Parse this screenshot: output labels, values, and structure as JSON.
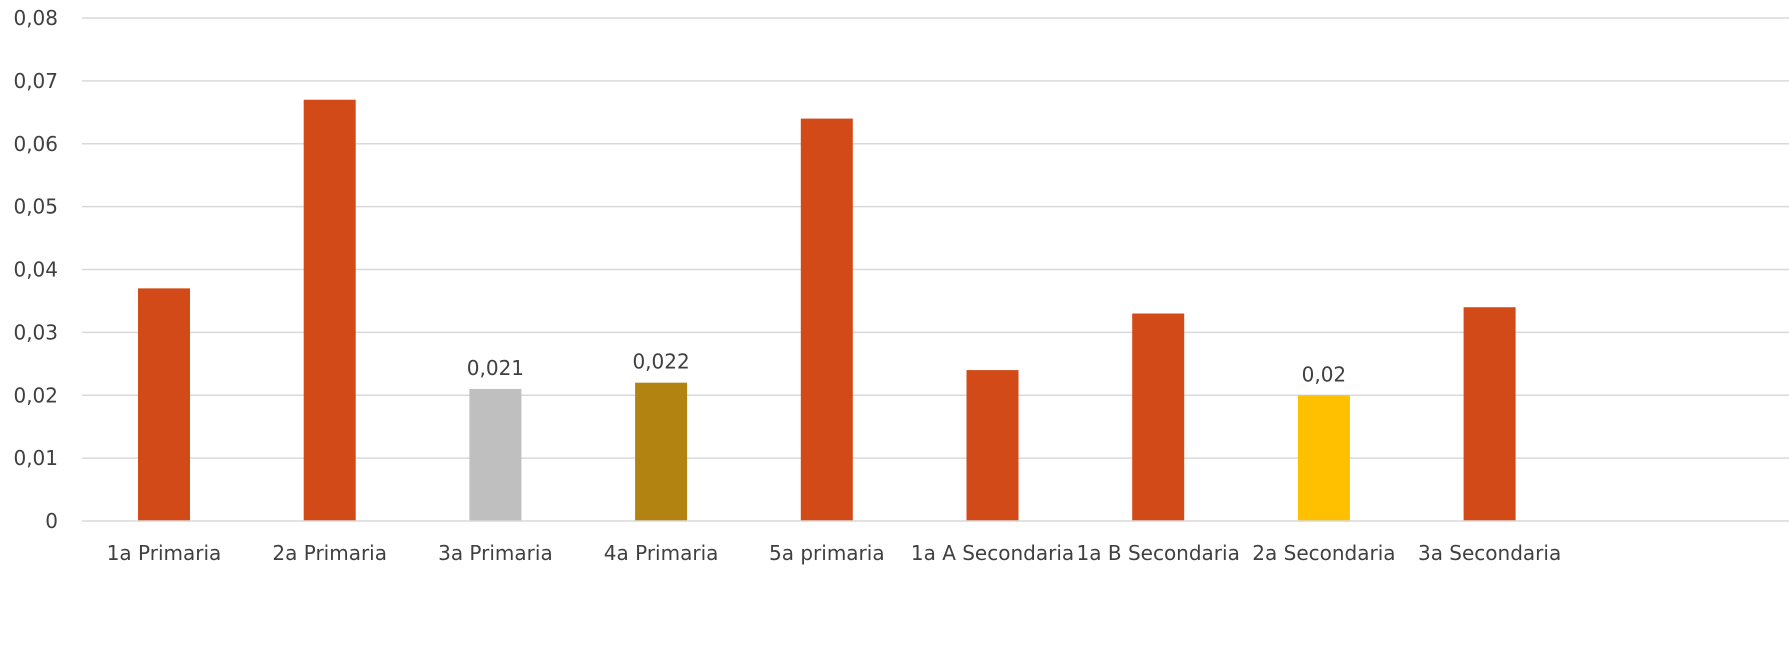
{
  "chart_data": {
    "type": "bar",
    "title": "",
    "xlabel": "",
    "ylabel": "",
    "ylim": [
      0,
      0.08
    ],
    "y_ticks": [
      "0",
      "0,01",
      "0,02",
      "0,03",
      "0,04",
      "0,05",
      "0,06",
      "0,07",
      "0,08"
    ],
    "grid": true,
    "legend": "none",
    "categories": [
      "1a Primaria",
      "2a Primaria",
      "3a Primaria",
      "4a Primaria",
      "5a primaria",
      "1a A Secondaria",
      "1a B Secondaria",
      "2a Secondaria",
      "3a Secondaria"
    ],
    "values": [
      0.037,
      0.067,
      0.021,
      0.022,
      0.064,
      0.024,
      0.033,
      0.02,
      0.034
    ],
    "bar_colors": [
      "#d24a17",
      "#d24a17",
      "#bfbfbf",
      "#b38312",
      "#d24a17",
      "#d24a17",
      "#d24a17",
      "#ffc000",
      "#d24a17"
    ],
    "data_labels": [
      "",
      "",
      "0,021",
      "0,022",
      "",
      "",
      "",
      "0,02",
      ""
    ]
  }
}
